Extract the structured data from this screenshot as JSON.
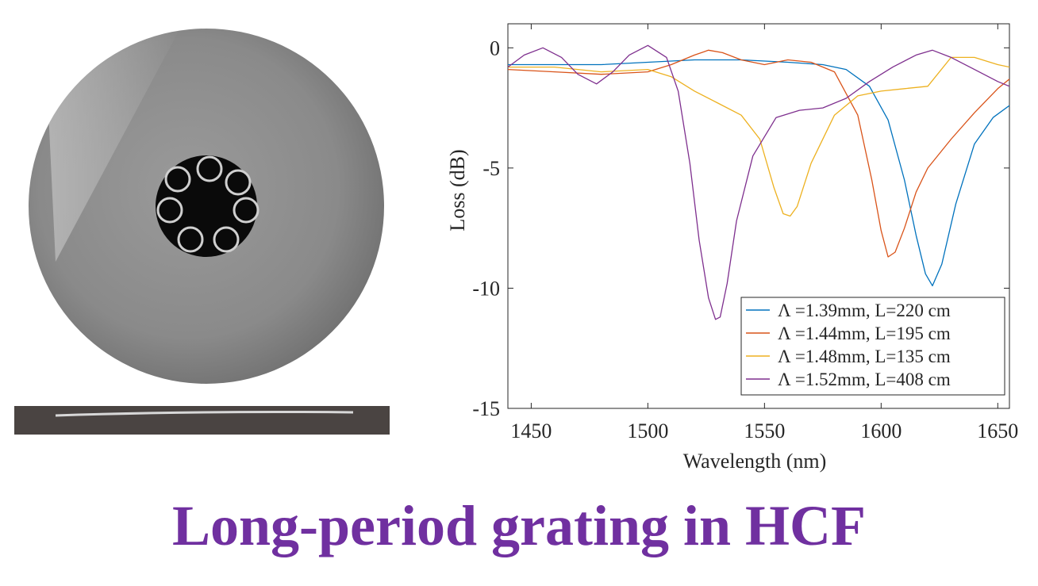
{
  "title": "Long-period grating in HCF",
  "colors": {
    "title": "#7030a0"
  },
  "micrograph": {
    "image": "sem-fiber-cross-section",
    "fiber_photo": "fiber-side-view-photo"
  },
  "chart_data": {
    "type": "line",
    "title": "",
    "xlabel": "Wavelength (nm)",
    "ylabel": "Loss (dB)",
    "xlim": [
      1440,
      1655
    ],
    "ylim": [
      -15,
      1
    ],
    "xticks": [
      1450,
      1500,
      1550,
      1600,
      1650
    ],
    "yticks": [
      0,
      -5,
      -10,
      -15
    ],
    "grid": false,
    "legend_position": "bottom-right",
    "series": [
      {
        "name": "Λ =1.39mm, L=220 cm",
        "color": "#0072bd",
        "x": [
          1440,
          1460,
          1480,
          1500,
          1520,
          1540,
          1560,
          1575,
          1585,
          1595,
          1603,
          1610,
          1615,
          1619,
          1622,
          1626,
          1632,
          1640,
          1648,
          1655
        ],
        "y": [
          -0.7,
          -0.7,
          -0.7,
          -0.6,
          -0.5,
          -0.5,
          -0.6,
          -0.7,
          -0.9,
          -1.6,
          -3.0,
          -5.5,
          -7.8,
          -9.4,
          -9.9,
          -9.0,
          -6.5,
          -4.0,
          -2.9,
          -2.4
        ]
      },
      {
        "name": "Λ =1.44mm, L=195 cm",
        "color": "#d95319",
        "x": [
          1440,
          1460,
          1480,
          1500,
          1510,
          1520,
          1526,
          1532,
          1540,
          1550,
          1560,
          1570,
          1580,
          1590,
          1596,
          1600,
          1603,
          1606,
          1610,
          1615,
          1620,
          1630,
          1640,
          1650,
          1655
        ],
        "y": [
          -0.9,
          -1.0,
          -1.1,
          -1.0,
          -0.7,
          -0.3,
          -0.1,
          -0.2,
          -0.5,
          -0.7,
          -0.5,
          -0.6,
          -1.0,
          -2.8,
          -5.5,
          -7.6,
          -8.7,
          -8.5,
          -7.5,
          -6.0,
          -5.0,
          -3.8,
          -2.7,
          -1.7,
          -1.3
        ]
      },
      {
        "name": "Λ =1.48mm, L=135 cm",
        "color": "#edb120",
        "x": [
          1440,
          1460,
          1480,
          1500,
          1510,
          1520,
          1530,
          1540,
          1548,
          1554,
          1558,
          1561,
          1564,
          1570,
          1580,
          1590,
          1600,
          1610,
          1620,
          1630,
          1640,
          1650,
          1655
        ],
        "y": [
          -0.8,
          -0.8,
          -1.0,
          -0.9,
          -1.2,
          -1.8,
          -2.3,
          -2.8,
          -3.8,
          -5.8,
          -6.9,
          -7.0,
          -6.6,
          -4.8,
          -2.8,
          -2.0,
          -1.8,
          -1.7,
          -1.6,
          -0.4,
          -0.4,
          -0.7,
          -0.8
        ]
      },
      {
        "name": "Λ =1.52mm, L=408 cm",
        "color": "#7e2f8e",
        "x": [
          1440,
          1447,
          1455,
          1463,
          1470,
          1478,
          1485,
          1492,
          1500,
          1508,
          1513,
          1518,
          1522,
          1526,
          1529,
          1531,
          1534,
          1538,
          1545,
          1555,
          1565,
          1575,
          1585,
          1595,
          1605,
          1615,
          1622,
          1630,
          1640,
          1650,
          1655
        ],
        "y": [
          -0.8,
          -0.3,
          0.0,
          -0.4,
          -1.1,
          -1.5,
          -1.0,
          -0.3,
          0.1,
          -0.4,
          -1.8,
          -4.8,
          -8.0,
          -10.4,
          -11.3,
          -11.2,
          -9.8,
          -7.2,
          -4.5,
          -2.9,
          -2.6,
          -2.5,
          -2.1,
          -1.4,
          -0.8,
          -0.3,
          -0.1,
          -0.4,
          -0.9,
          -1.4,
          -1.6
        ]
      }
    ]
  }
}
